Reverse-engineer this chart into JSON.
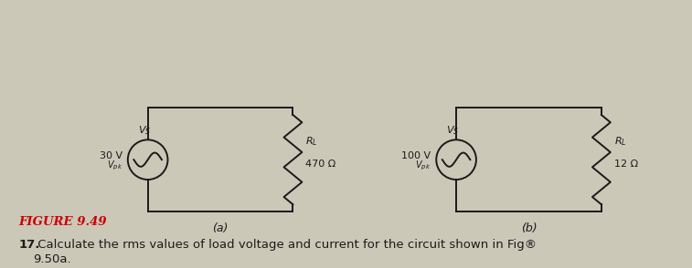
{
  "figure_label": "FIGURE 9.49",
  "figure_label_color": "#cc0000",
  "problem_number": "17.",
  "problem_text": " Calculate the rms values of load voltage and current for the circuit shown in Fig®",
  "problem_line2": "9.50a.",
  "bg_color": "#ccc8b8",
  "line_color": "#1a1a1a",
  "circuit_a": {
    "vs_label_top": "V",
    "vs_label_sub": "S",
    "vs_value": "30 V",
    "vs_sub": "pk",
    "rl_label": "R",
    "rl_sub": "L",
    "rl_value": "470 Ω",
    "bottom_label": "(a)"
  },
  "circuit_b": {
    "vs_label_top": "V",
    "vs_label_sub": "S",
    "vs_value": "100 V",
    "vs_sub": "pk",
    "rl_label": "R",
    "rl_sub": "L",
    "rl_value": "12 Ω",
    "bottom_label": "(b)"
  }
}
